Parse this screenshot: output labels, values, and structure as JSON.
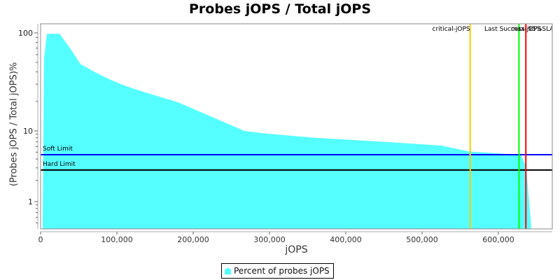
{
  "chart_data": {
    "type": "area",
    "title": "Probes jOPS / Total jOPS",
    "xlabel": "jOPS",
    "ylabel": "(Probes jOPS / Total jOPS)%",
    "yscale": "log",
    "xlim": [
      0,
      670000
    ],
    "ylim": [
      0.5,
      130
    ],
    "x_ticks": [
      0,
      100000,
      200000,
      300000,
      400000,
      500000,
      600000
    ],
    "x_tick_labels": [
      "0",
      "100,000",
      "200,000",
      "300,000",
      "400,000",
      "500,000",
      "600,000"
    ],
    "y_ticks": [
      1,
      10,
      100
    ],
    "y_tick_labels": [
      "1",
      "10",
      "100"
    ],
    "grid": false,
    "legend_position": "bottom",
    "series": [
      {
        "name": "Percent of probes jOPS",
        "color": "#55ffff",
        "x": [
          2750,
          4600,
          8300,
          24800,
          38500,
          52300,
          70600,
          89000,
          107300,
          134800,
          180600,
          266900,
          294400,
          358500,
          450200,
          525400,
          562100,
          628100,
          630000,
          636300,
          642700
        ],
        "values": [
          0.5,
          55,
          98,
          98,
          70,
          48,
          40,
          34,
          29.5,
          25,
          19.5,
          10,
          9.2,
          8,
          7,
          6.2,
          5.1,
          4.6,
          4.4,
          3.2,
          0.5
        ]
      }
    ],
    "horizontal_lines": [
      {
        "label": "Soft Limit",
        "value": 4.6,
        "color": "#0000ff"
      },
      {
        "label": "Hard Limit",
        "value": 2.8,
        "color": "#000000"
      }
    ],
    "vertical_lines": [
      {
        "label": "critical-jOPS",
        "x": 563000,
        "color": "#ffcc00"
      },
      {
        "label": "max-jOPS",
        "x": 627000,
        "color": "#00ff00"
      },
      {
        "label": "SLA",
        "x": 636000,
        "color": "#ff0000"
      }
    ],
    "annotations": [
      "critical-jOPS",
      "Last Success",
      "max-jOPS",
      "SLA"
    ]
  },
  "chart": {
    "title": "Probes jOPS / Total jOPS",
    "xlabel": "jOPS",
    "ylabel": "(Probes jOPS / Total jOPS)%",
    "legend_label": "Percent of probes jOPS"
  }
}
